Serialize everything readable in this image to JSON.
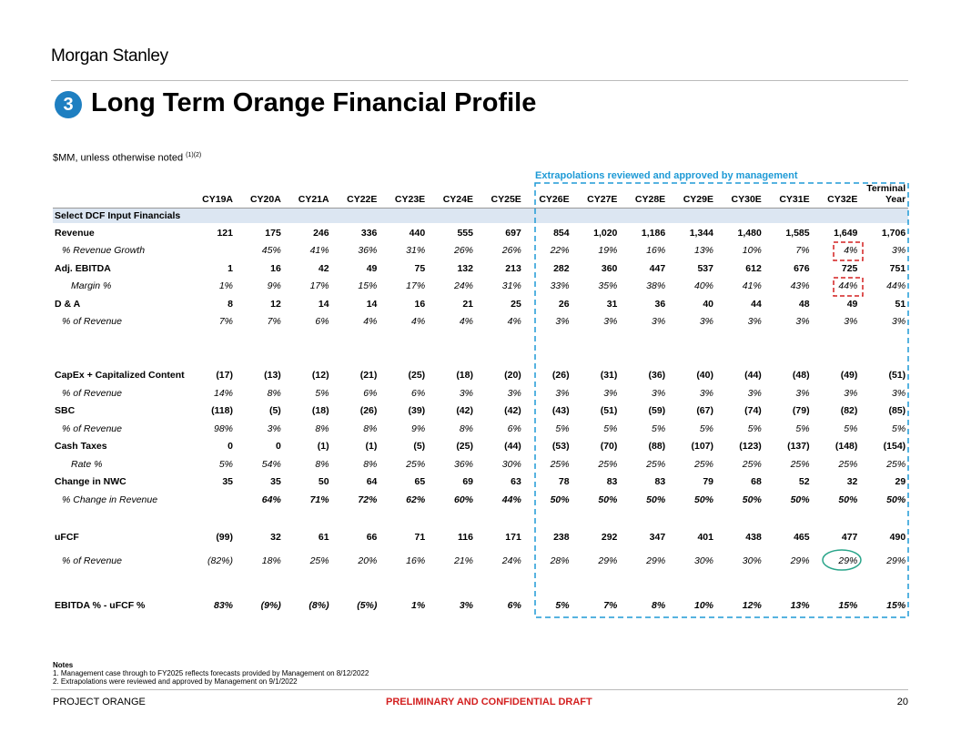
{
  "header": {
    "brand": "Morgan Stanley",
    "section_number": "3",
    "title": "Long Term Orange Financial Profile",
    "subtitle": "$MM, unless otherwise noted",
    "subtitle_footnotes": "(1)(2)",
    "annotation": "Extrapolations reviewed and approved by management"
  },
  "table": {
    "columns": [
      "CY19A",
      "CY20A",
      "CY21A",
      "CY22E",
      "CY23E",
      "CY24E",
      "CY25E",
      "CY26E",
      "CY27E",
      "CY28E",
      "CY29E",
      "CY30E",
      "CY31E",
      "CY32E",
      [
        "Terminal",
        "Year"
      ]
    ],
    "section_header": "Select DCF Input Financials",
    "rows": [
      {
        "label": "Revenue",
        "style": "main",
        "values": [
          "121",
          "175",
          "246",
          "336",
          "440",
          "555",
          "697",
          "854",
          "1,020",
          "1,186",
          "1,344",
          "1,480",
          "1,585",
          "1,649",
          "1,706"
        ]
      },
      {
        "label": "% Revenue Growth",
        "style": "sub",
        "values": [
          null,
          "45%",
          "41%",
          "36%",
          "31%",
          "26%",
          "26%",
          "22%",
          "19%",
          "16%",
          "13%",
          "10%",
          "7%",
          "4%",
          "3%"
        ]
      },
      {
        "label": "Adj. EBITDA",
        "style": "main",
        "values": [
          "1",
          "16",
          "42",
          "49",
          "75",
          "132",
          "213",
          "282",
          "360",
          "447",
          "537",
          "612",
          "676",
          "725",
          "751"
        ]
      },
      {
        "label": "Margin %",
        "style": "sub",
        "values": [
          "1%",
          "9%",
          "17%",
          "15%",
          "17%",
          "24%",
          "31%",
          "33%",
          "35%",
          "38%",
          "40%",
          "41%",
          "43%",
          "44%",
          "44%"
        ]
      },
      {
        "label": "D & A",
        "style": "main",
        "values": [
          "8",
          "12",
          "14",
          "14",
          "16",
          "21",
          "25",
          "26",
          "31",
          "36",
          "40",
          "44",
          "48",
          "49",
          "51"
        ]
      },
      {
        "label": "% of Revenue",
        "style": "sub",
        "values": [
          "7%",
          "7%",
          "6%",
          "4%",
          "4%",
          "4%",
          "4%",
          "3%",
          "3%",
          "3%",
          "3%",
          "3%",
          "3%",
          "3%",
          "3%"
        ]
      },
      {
        "label": "CapEx + Capitalized Content",
        "style": "main",
        "values": [
          "(17)",
          "(13)",
          "(12)",
          "(21)",
          "(25)",
          "(18)",
          "(20)",
          "(26)",
          "(31)",
          "(36)",
          "(40)",
          "(44)",
          "(48)",
          "(49)",
          "(51)"
        ]
      },
      {
        "label": "% of Revenue",
        "style": "sub",
        "values": [
          "14%",
          "8%",
          "5%",
          "6%",
          "6%",
          "3%",
          "3%",
          "3%",
          "3%",
          "3%",
          "3%",
          "3%",
          "3%",
          "3%",
          "3%"
        ]
      },
      {
        "label": "SBC",
        "style": "main",
        "values": [
          "(118)",
          "(5)",
          "(18)",
          "(26)",
          "(39)",
          "(42)",
          "(42)",
          "(43)",
          "(51)",
          "(59)",
          "(67)",
          "(74)",
          "(79)",
          "(82)",
          "(85)"
        ]
      },
      {
        "label": "% of Revenue",
        "style": "sub",
        "values": [
          "98%",
          "3%",
          "8%",
          "8%",
          "9%",
          "8%",
          "6%",
          "5%",
          "5%",
          "5%",
          "5%",
          "5%",
          "5%",
          "5%",
          "5%"
        ]
      },
      {
        "label": "Cash Taxes",
        "style": "main",
        "values": [
          "0",
          "0",
          "(1)",
          "(1)",
          "(5)",
          "(25)",
          "(44)",
          "(53)",
          "(70)",
          "(88)",
          "(107)",
          "(123)",
          "(137)",
          "(148)",
          "(154)"
        ]
      },
      {
        "label": "Rate %",
        "style": "sub",
        "values": [
          "5%",
          "54%",
          "8%",
          "8%",
          "25%",
          "36%",
          "30%",
          "25%",
          "25%",
          "25%",
          "25%",
          "25%",
          "25%",
          "25%",
          "25%"
        ]
      },
      {
        "label": "Change in NWC",
        "style": "main",
        "values": [
          "35",
          "35",
          "50",
          "64",
          "65",
          "69",
          "63",
          "78",
          "83",
          "83",
          "79",
          "68",
          "52",
          "32",
          "29"
        ]
      },
      {
        "label": "% Change in Revenue",
        "style": "sub-bold",
        "values": [
          null,
          "64%",
          "71%",
          "72%",
          "62%",
          "60%",
          "44%",
          "50%",
          "50%",
          "50%",
          "50%",
          "50%",
          "50%",
          "50%",
          "50%"
        ]
      },
      {
        "label": "uFCF",
        "style": "main",
        "values": [
          "(99)",
          "32",
          "61",
          "66",
          "71",
          "116",
          "171",
          "238",
          "292",
          "347",
          "401",
          "438",
          "465",
          "477",
          "490"
        ]
      },
      {
        "label": "% of Revenue",
        "style": "sub",
        "values": [
          "(82%)",
          "18%",
          "25%",
          "20%",
          "16%",
          "21%",
          "24%",
          "28%",
          "29%",
          "29%",
          "30%",
          "30%",
          "29%",
          "29%",
          "29%"
        ]
      },
      {
        "label": "EBITDA % - uFCF %",
        "style": "main-italic",
        "values": [
          "83%",
          "(9%)",
          "(8%)",
          "(5%)",
          "1%",
          "3%",
          "6%",
          "5%",
          "7%",
          "8%",
          "10%",
          "12%",
          "13%",
          "15%",
          "15%"
        ]
      }
    ]
  },
  "notes": {
    "heading": "Notes",
    "items": [
      "1.  Management case through to FY2025 reflects forecasts provided by Management on 8/12/2022",
      "2.  Extrapolations were reviewed and approved by Management on 9/1/2022"
    ]
  },
  "footer": {
    "left": "PROJECT ORANGE",
    "center": "PRELIMINARY AND CONFIDENTIAL DRAFT",
    "page": "20"
  }
}
